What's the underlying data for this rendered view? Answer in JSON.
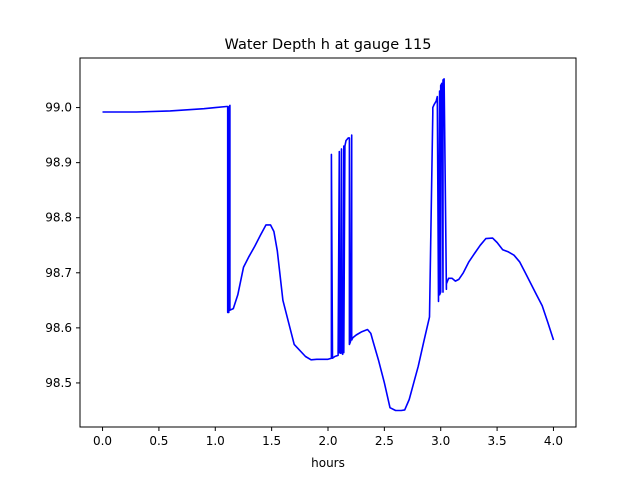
{
  "chart_data": {
    "type": "line",
    "title": "Water Depth h at gauge 115",
    "xlabel": "hours",
    "ylabel": "",
    "xlim": [
      -0.2,
      4.2
    ],
    "ylim": [
      98.42,
      99.09
    ],
    "xticks": [
      0.0,
      0.5,
      1.0,
      1.5,
      2.0,
      2.5,
      3.0,
      3.5,
      4.0
    ],
    "xtick_labels": [
      "0.0",
      "0.5",
      "1.0",
      "1.5",
      "2.0",
      "2.5",
      "3.0",
      "3.5",
      "4.0"
    ],
    "yticks": [
      98.5,
      98.6,
      98.7,
      98.8,
      98.9,
      99.0
    ],
    "ytick_labels": [
      "98.5",
      "98.6",
      "98.7",
      "98.8",
      "98.9",
      "99.0"
    ],
    "grid": false,
    "series": [
      {
        "name": "",
        "color": "#0000ff",
        "x": [
          0.0,
          0.3,
          0.6,
          0.9,
          1.0,
          1.1,
          1.11,
          1.11,
          1.12,
          1.12,
          1.13,
          1.13,
          1.16,
          1.2,
          1.25,
          1.3,
          1.35,
          1.4,
          1.45,
          1.49,
          1.52,
          1.55,
          1.6,
          1.7,
          1.8,
          1.85,
          1.9,
          1.95,
          2.0,
          2.03,
          2.03,
          2.04,
          2.06,
          2.09,
          2.1,
          2.1,
          2.11,
          2.12,
          2.12,
          2.13,
          2.14,
          2.14,
          2.15,
          2.16,
          2.18,
          2.19,
          2.19,
          2.2,
          2.21,
          2.21,
          2.22,
          2.25,
          2.3,
          2.35,
          2.38,
          2.4,
          2.45,
          2.5,
          2.55,
          2.6,
          2.65,
          2.68,
          2.72,
          2.76,
          2.8,
          2.85,
          2.9,
          2.93,
          2.93,
          2.94,
          2.96,
          2.97,
          2.98,
          2.98,
          2.99,
          2.99,
          3.0,
          3.0,
          3.01,
          3.02,
          3.02,
          3.03,
          3.05,
          3.05,
          3.06,
          3.07,
          3.1,
          3.13,
          3.16,
          3.2,
          3.25,
          3.3,
          3.35,
          3.4,
          3.46,
          3.5,
          3.55,
          3.6,
          3.65,
          3.7,
          3.75,
          3.8,
          3.85,
          3.9,
          3.95,
          4.0
        ],
        "y": [
          98.992,
          98.992,
          98.994,
          98.998,
          99.0,
          99.002,
          99.002,
          98.628,
          98.628,
          99.0,
          99.004,
          98.632,
          98.635,
          98.66,
          98.71,
          98.73,
          98.748,
          98.768,
          98.787,
          98.787,
          98.775,
          98.74,
          98.65,
          98.57,
          98.548,
          98.542,
          98.543,
          98.543,
          98.543,
          98.545,
          98.915,
          98.545,
          98.548,
          98.55,
          98.92,
          98.555,
          98.554,
          98.925,
          98.555,
          98.552,
          98.93,
          98.555,
          98.93,
          98.94,
          98.945,
          98.945,
          98.57,
          98.575,
          98.95,
          98.578,
          98.582,
          98.587,
          98.593,
          98.597,
          98.59,
          98.575,
          98.54,
          98.5,
          98.455,
          98.45,
          98.45,
          98.451,
          98.47,
          98.5,
          98.53,
          98.575,
          98.62,
          98.99,
          99.0,
          99.005,
          99.012,
          99.02,
          98.648,
          98.66,
          99.03,
          98.66,
          98.665,
          99.04,
          99.044,
          98.665,
          99.05,
          99.052,
          98.67,
          98.68,
          98.685,
          98.69,
          98.69,
          98.685,
          98.688,
          98.7,
          98.72,
          98.735,
          98.75,
          98.762,
          98.763,
          98.755,
          98.742,
          98.738,
          98.732,
          98.72,
          98.7,
          98.68,
          98.66,
          98.64,
          98.61,
          98.578
        ]
      }
    ]
  }
}
